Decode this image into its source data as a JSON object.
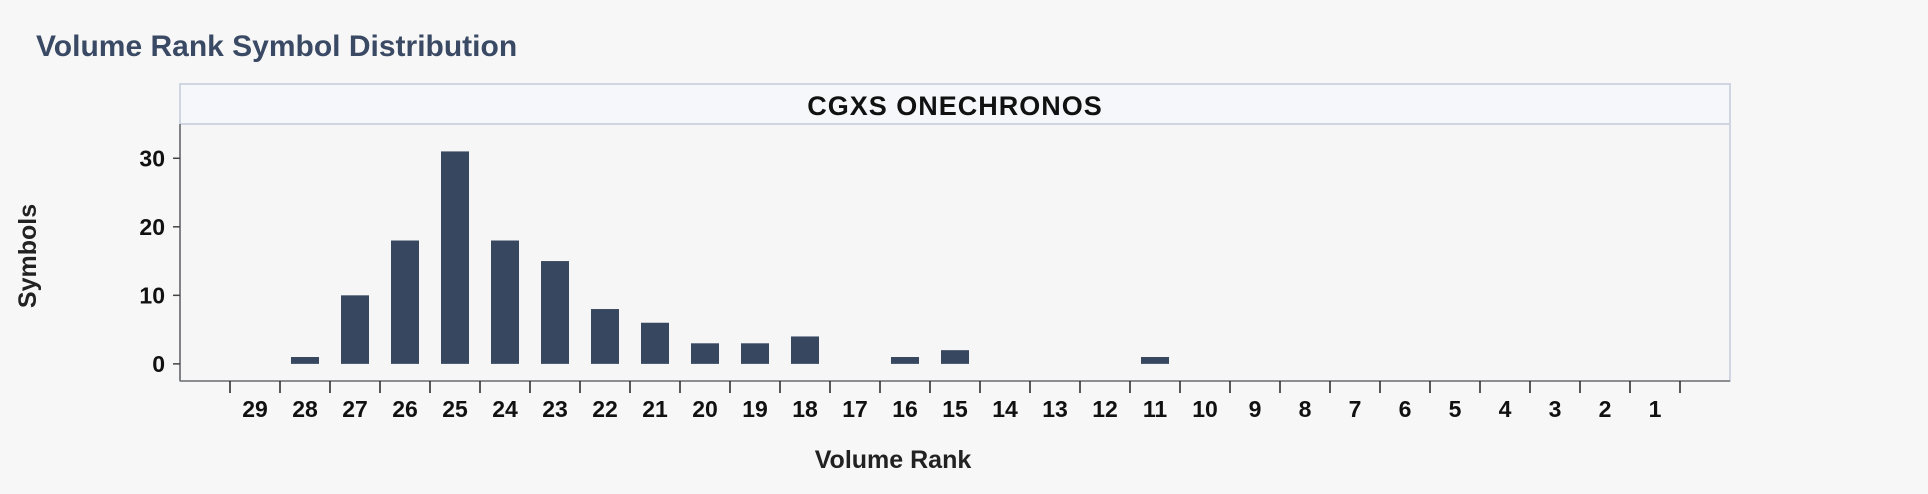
{
  "page": {
    "title": "Volume Rank Symbol Distribution"
  },
  "chart_data": {
    "type": "bar",
    "title": "CGXS ONECHRONOS",
    "xlabel": "Volume Rank",
    "ylabel": "Symbols",
    "categories": [
      "29",
      "28",
      "27",
      "26",
      "25",
      "24",
      "23",
      "22",
      "21",
      "20",
      "19",
      "18",
      "17",
      "16",
      "15",
      "14",
      "13",
      "12",
      "11",
      "10",
      "9",
      "8",
      "7",
      "6",
      "5",
      "4",
      "3",
      "2",
      "1"
    ],
    "values": [
      0,
      1,
      10,
      18,
      31,
      18,
      15,
      8,
      6,
      3,
      3,
      4,
      0,
      1,
      2,
      0,
      0,
      0,
      1,
      0,
      0,
      0,
      0,
      0,
      0,
      0,
      0,
      0,
      0
    ],
    "yticks": [
      0,
      10,
      20,
      30
    ],
    "ylim": [
      -2.5,
      35
    ],
    "bar_color": "#37475f",
    "grid": false
  }
}
